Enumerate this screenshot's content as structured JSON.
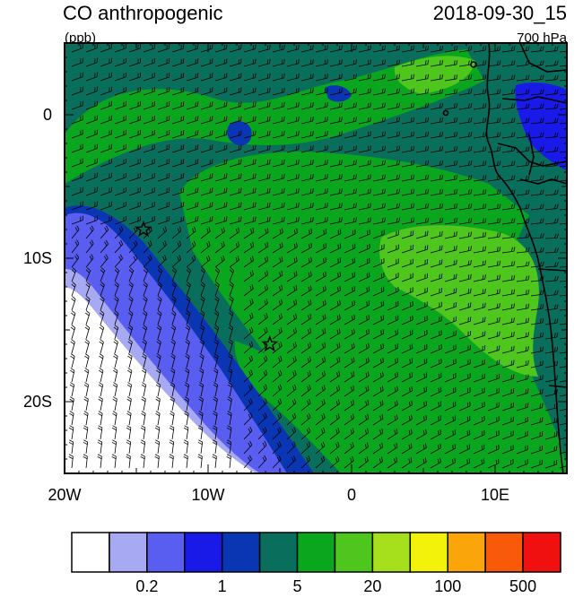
{
  "title_left": "CO anthropogenic",
  "units": "(ppb)",
  "title_right": "2018-09-30_15",
  "level": "700 hPa",
  "lon_ticks": [
    {
      "value": -20,
      "label": "20W"
    },
    {
      "value": -10,
      "label": "10W"
    },
    {
      "value": 0,
      "label": "0"
    },
    {
      "value": 10,
      "label": "10E"
    }
  ],
  "lat_ticks": [
    {
      "value": 0,
      "label": "0"
    },
    {
      "value": -10,
      "label": "10S"
    },
    {
      "value": -20,
      "label": "20S"
    }
  ],
  "extent": {
    "lon": [
      -20,
      15
    ],
    "lat": [
      -25,
      5
    ]
  },
  "colorbar": {
    "colors": [
      "#ffffff",
      "#a7a9f3",
      "#5a5ef0",
      "#1919e8",
      "#0a36b4",
      "#0a6e5c",
      "#0aa61e",
      "#4fc61d",
      "#a6e01c",
      "#f2f20a",
      "#faa60a",
      "#f85a0a",
      "#f01010"
    ],
    "labels": [
      {
        "boundary": 2,
        "text": "0.2"
      },
      {
        "boundary": 4,
        "text": "1"
      },
      {
        "boundary": 6,
        "text": "5"
      },
      {
        "boundary": 8,
        "text": "20"
      },
      {
        "boundary": 10,
        "text": "100"
      },
      {
        "boundary": 12,
        "text": "500"
      }
    ]
  },
  "markers": [
    {
      "name": "star-north",
      "lon": -14.5,
      "lat": -8
    },
    {
      "name": "star-south",
      "lon": -5.7,
      "lat": -16
    }
  ]
}
